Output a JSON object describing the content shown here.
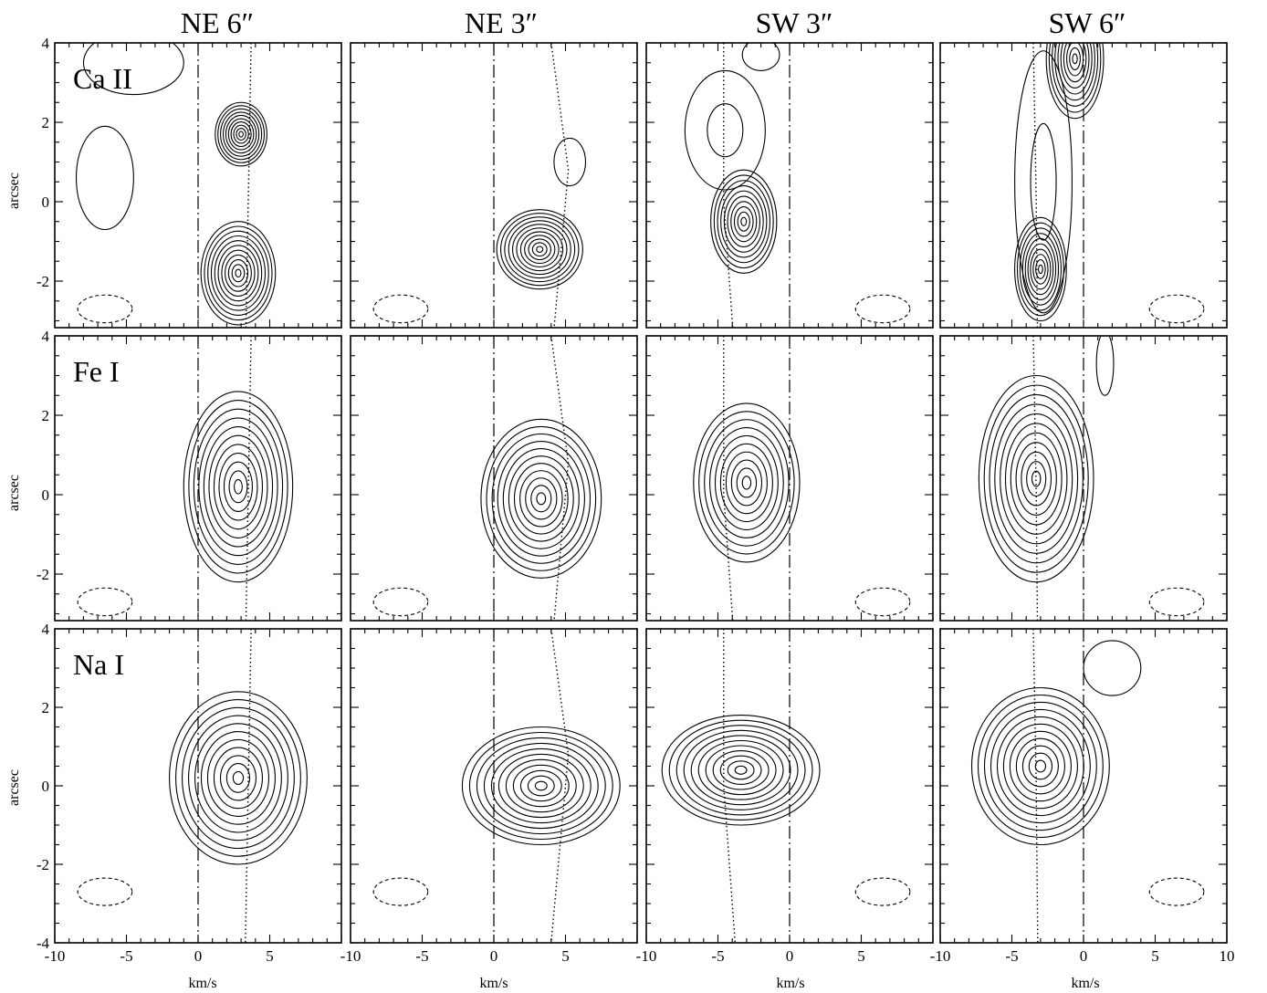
{
  "chart_data": {
    "type": "contour",
    "columns": [
      "NE 6″",
      "NE 3″",
      "SW 3″",
      "SW 6″"
    ],
    "rows": [
      "Ca II",
      "Fe I",
      "Na I"
    ],
    "xlabel": "km/s",
    "ylabel": "arcsec",
    "xlim": [
      -10,
      10
    ],
    "ylim": [
      -4,
      4
    ],
    "xticks": [
      -10,
      -5,
      0,
      5,
      10
    ],
    "yticks": [
      -4,
      -2,
      0,
      2,
      4
    ],
    "systemic_velocity": 0,
    "beam": {
      "x_center": 6.5,
      "y_center": -2.7,
      "x_semi": 1.9,
      "y_semi": 0.35,
      "x_center_left": -6.5
    },
    "model_curve": {
      "NE 6″": [
        [
          3.7,
          4
        ],
        [
          3.3,
          -4
        ]
      ],
      "NE 3″": [
        [
          4.0,
          4
        ],
        [
          5.2,
          0.8
        ],
        [
          4.0,
          -4
        ]
      ],
      "SW 3″": [
        [
          -4.6,
          4
        ],
        [
          -4.6,
          0
        ],
        [
          -3.8,
          -4
        ]
      ],
      "SW 6″": [
        [
          -3.5,
          4
        ],
        [
          -3.3,
          0
        ],
        [
          -3.2,
          -4
        ]
      ]
    },
    "panels": [
      {
        "row": "Ca II",
        "column": "NE 6″",
        "peaks": [
          {
            "v": 3.0,
            "y": 1.7,
            "sv": 1.8,
            "sy": 0.8,
            "n": 10
          },
          {
            "v": 2.8,
            "y": -1.8,
            "sv": 2.6,
            "sy": 1.3,
            "n": 11
          }
        ],
        "extra": [
          {
            "v": -6.5,
            "y": 0.6,
            "sv": 2.0,
            "sy": 1.3,
            "n": 1
          },
          {
            "v": -4.5,
            "y": 3.5,
            "sv": 3.5,
            "sy": 0.8,
            "n": 1
          }
        ]
      },
      {
        "row": "Ca II",
        "column": "NE 3″",
        "peaks": [
          {
            "v": 3.2,
            "y": -1.2,
            "sv": 3.0,
            "sy": 1.0,
            "n": 11
          }
        ],
        "extra": [
          {
            "v": 5.3,
            "y": 1.0,
            "sv": 1.1,
            "sy": 0.6,
            "n": 1
          }
        ]
      },
      {
        "row": "Ca II",
        "column": "SW 3″",
        "peaks": [
          {
            "v": -3.2,
            "y": -0.5,
            "sv": 2.3,
            "sy": 1.3,
            "n": 10
          }
        ],
        "extra": [
          {
            "v": -4.5,
            "y": 1.8,
            "sv": 2.8,
            "sy": 1.5,
            "n": 2
          },
          {
            "v": -2.0,
            "y": 3.7,
            "sv": 1.3,
            "sy": 0.4,
            "n": 1
          }
        ]
      },
      {
        "row": "Ca II",
        "column": "SW 6″",
        "peaks": [
          {
            "v": -3.0,
            "y": -1.7,
            "sv": 1.8,
            "sy": 1.3,
            "n": 10
          },
          {
            "v": -0.6,
            "y": 3.6,
            "sv": 2.0,
            "sy": 1.5,
            "n": 10
          }
        ],
        "extra": [
          {
            "v": -2.8,
            "y": 0.5,
            "sv": 2.0,
            "sy": 3.3,
            "n": 2
          }
        ]
      },
      {
        "row": "Fe I",
        "column": "NE 6″",
        "peaks": [
          {
            "v": 2.8,
            "y": 0.2,
            "sv": 3.8,
            "sy": 2.4,
            "n": 11
          }
        ],
        "extra": []
      },
      {
        "row": "Fe I",
        "column": "NE 3″",
        "peaks": [
          {
            "v": 3.3,
            "y": -0.1,
            "sv": 4.2,
            "sy": 2.0,
            "n": 11
          }
        ],
        "extra": []
      },
      {
        "row": "Fe I",
        "column": "SW 3″",
        "peaks": [
          {
            "v": -3.0,
            "y": 0.3,
            "sv": 3.7,
            "sy": 2.0,
            "n": 10
          }
        ],
        "extra": []
      },
      {
        "row": "Fe I",
        "column": "SW 6″",
        "peaks": [
          {
            "v": -3.3,
            "y": 0.4,
            "sv": 4.0,
            "sy": 2.6,
            "n": 11
          }
        ],
        "extra": [
          {
            "v": 1.5,
            "y": 3.3,
            "sv": 0.6,
            "sy": 0.8,
            "n": 1
          }
        ]
      },
      {
        "row": "Na I",
        "column": "NE 6″",
        "peaks": [
          {
            "v": 2.8,
            "y": 0.2,
            "sv": 4.8,
            "sy": 2.2,
            "n": 11
          }
        ],
        "extra": []
      },
      {
        "row": "Na I",
        "column": "NE 3″",
        "peaks": [
          {
            "v": 3.3,
            "y": 0.0,
            "sv": 5.5,
            "sy": 1.5,
            "n": 11
          }
        ],
        "extra": []
      },
      {
        "row": "Na I",
        "column": "SW 3″",
        "peaks": [
          {
            "v": -3.4,
            "y": 0.4,
            "sv": 5.5,
            "sy": 1.4,
            "n": 11
          }
        ],
        "extra": []
      },
      {
        "row": "Na I",
        "column": "SW 6″",
        "peaks": [
          {
            "v": -3.0,
            "y": 0.5,
            "sv": 4.8,
            "sy": 2.0,
            "n": 11
          }
        ],
        "extra": [
          {
            "v": 2.0,
            "y": 3.0,
            "sv": 2.0,
            "sy": 0.7,
            "n": 1
          }
        ]
      }
    ]
  }
}
